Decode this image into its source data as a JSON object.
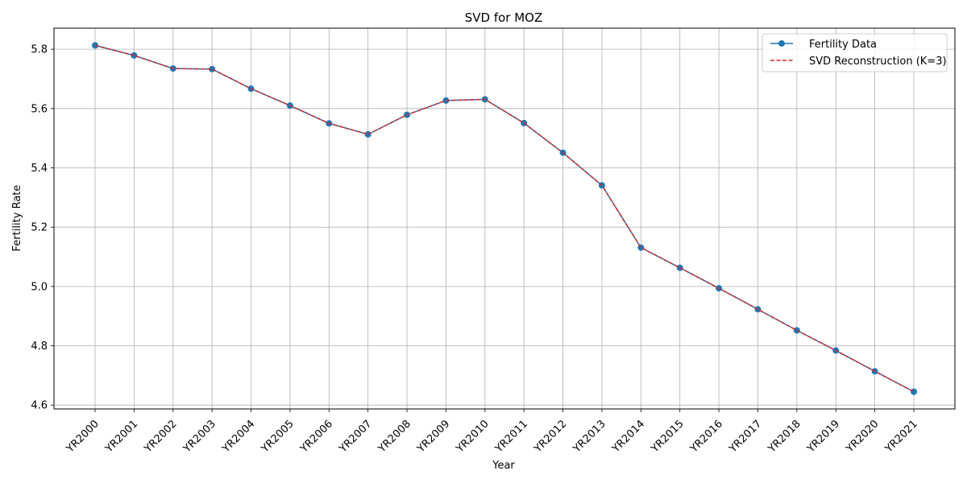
{
  "chart_data": {
    "type": "line",
    "title": "SVD for MOZ",
    "xlabel": "Year",
    "ylabel": "Fertility Rate",
    "categories": [
      "YR2000",
      "YR2001",
      "YR2002",
      "YR2003",
      "YR2004",
      "YR2005",
      "YR2006",
      "YR2007",
      "YR2008",
      "YR2009",
      "YR2010",
      "YR2011",
      "YR2012",
      "YR2013",
      "YR2014",
      "YR2015",
      "YR2016",
      "YR2017",
      "YR2018",
      "YR2019",
      "YR2020",
      "YR2021"
    ],
    "ylim": [
      4.587,
      5.871
    ],
    "yticks": [
      4.6,
      4.8,
      5.0,
      5.2,
      5.4,
      5.6,
      5.8
    ],
    "ytick_labels": [
      "4.6",
      "4.8",
      "5.0",
      "5.2",
      "5.4",
      "5.6",
      "5.8"
    ],
    "grid": true,
    "legend_position": "top-right",
    "series": [
      {
        "name": "Fertility Data",
        "color": "#1f77b4",
        "style": "solid line with circle markers",
        "values": [
          5.813,
          5.779,
          5.735,
          5.733,
          5.667,
          5.61,
          5.55,
          5.513,
          5.579,
          5.627,
          5.631,
          5.551,
          5.451,
          5.341,
          5.131,
          5.063,
          4.994,
          4.923,
          4.852,
          4.784,
          4.714,
          4.645
        ]
      },
      {
        "name": "SVD Reconstruction (K=3)",
        "color": "#d62728",
        "style": "dashed line",
        "values": [
          5.813,
          5.779,
          5.735,
          5.733,
          5.667,
          5.61,
          5.55,
          5.513,
          5.579,
          5.627,
          5.631,
          5.551,
          5.451,
          5.341,
          5.131,
          5.063,
          4.994,
          4.923,
          4.852,
          4.784,
          4.714,
          4.645
        ]
      }
    ]
  }
}
